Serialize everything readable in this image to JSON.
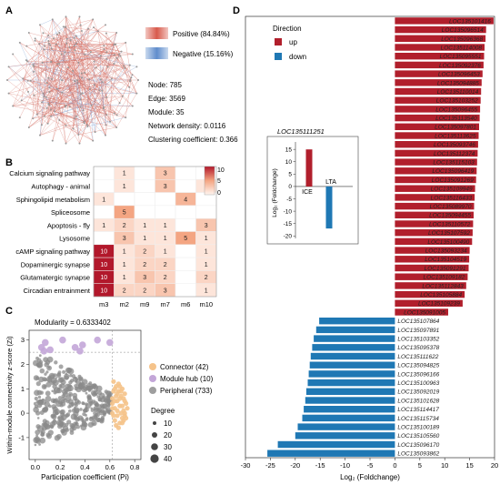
{
  "panels": {
    "A": {
      "label": "A",
      "legend": [
        {
          "label": "Positive (84.84%)",
          "color": "#c0392b"
        },
        {
          "label": "Negative (15.16%)",
          "color": "#4a7fc1"
        }
      ],
      "stats": [
        "Node: 785",
        "Edge: 3569",
        "Module: 35",
        "Network density: 0.0116",
        "Clustering coefficient: 0.366"
      ]
    },
    "B": {
      "label": "B",
      "colorbar_ticks": [
        "10",
        "5",
        "0"
      ],
      "colors": {
        "high": "#b2182b",
        "low": "#fff5f0"
      }
    },
    "C": {
      "label": "C",
      "modularity_text": "Modularity = 0.6333402",
      "legend": [
        {
          "label": "Connector (42)",
          "color": "#f5c38a"
        },
        {
          "label": "Module hub (10)",
          "color": "#c3a6d8"
        },
        {
          "label": "Peripheral (733)",
          "color": "#9e9e9e"
        }
      ],
      "size_legend_title": "Degree",
      "size_legend": [
        "10",
        "20",
        "30",
        "40"
      ]
    },
    "D": {
      "label": "D",
      "legend_title": "Direction",
      "legend": [
        {
          "label": "up",
          "color": "#b11f2c"
        },
        {
          "label": "down",
          "color": "#1f78b4"
        }
      ],
      "inset": {
        "title": "LOC135111251",
        "ylabel": "Log₂ (Foldchange)",
        "categories": [
          "ICE",
          "LTA"
        ],
        "values": [
          15,
          -17
        ],
        "colors": [
          "#b11f2c",
          "#1f78b4"
        ],
        "yticks": [
          15,
          10,
          5,
          0,
          -5,
          -10,
          -15,
          -20
        ],
        "ylim": [
          -21,
          18
        ]
      }
    }
  },
  "chart_data": [
    {
      "type": "heatmap",
      "panel": "B",
      "rows": [
        "Calcium signaling pathway",
        "Autophagy - animal",
        "Sphingolipid metabolism",
        "Spliceosome",
        "Apoptosis - fly",
        "Lysosome",
        "cAMP signaling pathway",
        "Dopaminergic synapse",
        "Glutamatergic synapse",
        "Circadian entrainment"
      ],
      "columns": [
        "m3",
        "m2",
        "m9",
        "m7",
        "m6",
        "m10"
      ],
      "values": [
        [
          null,
          1,
          null,
          3,
          null,
          null
        ],
        [
          null,
          1,
          null,
          3,
          null,
          1
        ],
        [
          1,
          null,
          null,
          null,
          4,
          null
        ],
        [
          null,
          5,
          null,
          null,
          null,
          null
        ],
        [
          1,
          2,
          1,
          1,
          null,
          3
        ],
        [
          null,
          3,
          1,
          1,
          5,
          1
        ],
        [
          10,
          1,
          2,
          1,
          null,
          1
        ],
        [
          10,
          1,
          2,
          2,
          null,
          1
        ],
        [
          10,
          1,
          3,
          2,
          null,
          2
        ],
        [
          10,
          2,
          2,
          3,
          null,
          1
        ]
      ],
      "colorbar_range": [
        0,
        10
      ]
    },
    {
      "type": "scatter",
      "panel": "C",
      "xlabel": "Participation coefficient (Pi)",
      "ylabel": "Within-module connectivity z-score (Zi)",
      "xlim": [
        -0.05,
        0.85
      ],
      "ylim": [
        -1.9,
        3.4
      ],
      "xticks": [
        0.0,
        0.2,
        0.4,
        0.6,
        0.8
      ],
      "yticks": [
        3,
        2,
        1,
        0,
        -1
      ],
      "series": [
        {
          "name": "Module hub (10)",
          "x": [
            0.05,
            0.08,
            0.12,
            0.22,
            0.32,
            0.38,
            0.5,
            0.6,
            0.36,
            0.07
          ],
          "y": [
            2.7,
            2.9,
            2.6,
            3.0,
            2.7,
            2.8,
            3.0,
            2.9,
            2.55,
            2.55
          ]
        },
        {
          "name": "Connector (42)",
          "x": [
            0.63,
            0.65,
            0.67,
            0.7,
            0.72,
            0.62,
            0.66,
            0.69,
            0.73,
            0.64,
            0.68,
            0.71,
            0.62,
            0.66,
            0.7,
            0.74,
            0.64,
            0.68,
            0.72,
            0.63,
            0.67,
            0.71,
            0.65,
            0.69,
            0.73,
            0.62,
            0.66,
            0.7,
            0.64,
            0.68,
            0.72,
            0.63,
            0.67,
            0.71,
            0.65,
            0.69,
            0.62,
            0.66,
            0.7,
            0.64,
            0.68,
            0.72
          ],
          "y": [
            1.3,
            1.1,
            0.9,
            1.0,
            0.8,
            0.6,
            0.5,
            0.7,
            0.4,
            0.2,
            0.3,
            0.1,
            0.0,
            -0.1,
            -0.2,
            0.2,
            -0.3,
            -0.4,
            -0.1,
            0.9,
            1.2,
            0.6,
            -0.5,
            0.0,
            -0.2,
            0.4,
            0.8,
            0.3,
            1.0,
            0.6,
            0.5,
            -0.1,
            -0.6,
            -0.3,
            0.7,
            0.9,
            0.2,
            0.1,
            -0.4,
            0.5,
            1.1,
            0.0
          ]
        }
      ]
    },
    {
      "type": "bar",
      "panel": "D",
      "orientation": "horizontal",
      "title": "",
      "xlabel": "Log₂ (Foldchange)",
      "xlim": [
        -30,
        20
      ],
      "xticks": [
        -30,
        -25,
        -20,
        -15,
        -10,
        -5,
        0,
        5,
        10,
        15,
        20
      ],
      "series": [
        {
          "name": "up",
          "color": "#b11f2c",
          "categories": [
            "LOC135101416",
            "LOC135096514",
            "LOC135096368",
            "LOC135114008",
            "LOC135095551",
            "LOC135092376",
            "LOC135096453",
            "LOC135094885",
            "LOC135110014",
            "LOC135103252",
            "LOC135096455",
            "LOC135113540",
            "LOC135097801",
            "LOC135113625",
            "LOC135093746",
            "LOC135112374",
            "LOC135115103",
            "LOC135096419",
            "LOC135091269",
            "LOC135109949",
            "LOC135116433",
            "LOC135089970",
            "LOC135094455",
            "LOC135110572",
            "LOC135107592",
            "LOC135100490",
            "LOC135093234",
            "LOC135104519",
            "LOC135091291",
            "LOC135109182",
            "LOC135112843",
            "LOC135105884",
            "LOC135109239",
            "LOC135091005"
          ],
          "values": [
            19.8,
            18.3,
            18.2,
            18.0,
            17.9,
            17.8,
            17.6,
            17.4,
            17.3,
            17.2,
            17.1,
            17.0,
            16.9,
            16.8,
            16.7,
            16.6,
            16.5,
            16.4,
            16.3,
            16.1,
            16.0,
            15.9,
            15.8,
            15.7,
            15.6,
            15.5,
            15.0,
            14.9,
            14.8,
            14.6,
            14.3,
            14.0,
            13.6,
            10.7
          ]
        },
        {
          "name": "down",
          "color": "#1f78b4",
          "categories": [
            "LOC135107864",
            "LOC135097891",
            "LOC135103352",
            "LOC135095378",
            "LOC135111622",
            "LOC135094825",
            "LOC135096166",
            "LOC135100963",
            "LOC135092019",
            "LOC135101628",
            "LOC135114417",
            "LOC135115734",
            "LOC135100189",
            "LOC135105560",
            "LOC135096170",
            "LOC135093862"
          ],
          "values": [
            -15.2,
            -15.8,
            -16.3,
            -16.6,
            -16.9,
            -17.1,
            -17.3,
            -17.5,
            -17.8,
            -18.0,
            -18.3,
            -18.6,
            -19.5,
            -20.0,
            -23.5,
            -25.6
          ]
        }
      ]
    }
  ]
}
